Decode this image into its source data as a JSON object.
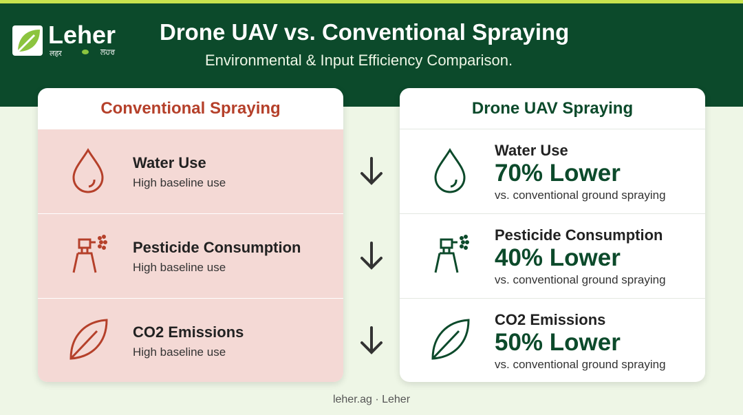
{
  "header": {
    "logo": "Leher",
    "logo_sub": [
      "लहर",
      "ਲਹਰ"
    ],
    "title": "Drone UAV vs. Conventional Spraying",
    "subtitle": "Environmental & Input Efficiency Comparison."
  },
  "left": {
    "title": "Conventional Spraying",
    "rows": [
      {
        "label": "Water Use",
        "desc": "High baseline use"
      },
      {
        "label": "Pesticide Consumption",
        "desc": "High baseline use"
      },
      {
        "label": "CO2 Emissions",
        "desc": "High baseline use"
      }
    ]
  },
  "right": {
    "title": "Drone UAV Spraying",
    "rows": [
      {
        "label": "Water Use",
        "value": "70% Lower",
        "desc": "vs. conventional ground spraying"
      },
      {
        "label": "Pesticide Consumption",
        "value": "40% Lower",
        "desc": "vs. conventional ground spraying"
      },
      {
        "label": "CO2 Emissions",
        "value": "50% Lower",
        "desc": "vs. conventional ground spraying"
      }
    ]
  },
  "footer": "leher.ag · Leher"
}
